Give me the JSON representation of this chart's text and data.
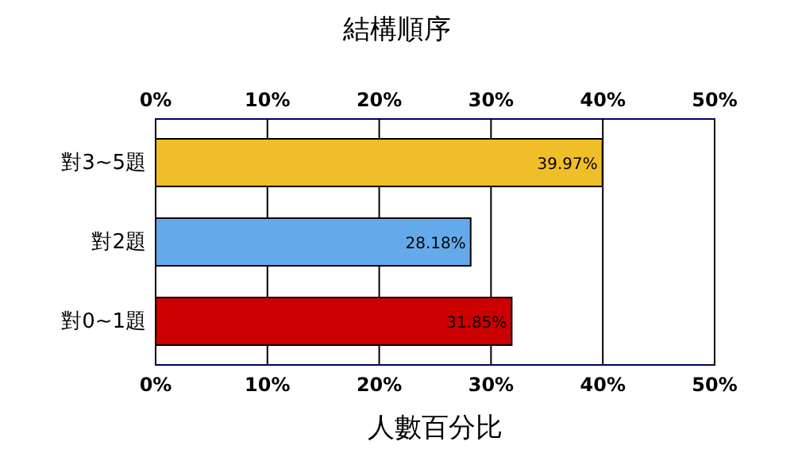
{
  "chart_data": {
    "type": "bar",
    "orientation": "horizontal",
    "title": "結構順序",
    "xlabel": "人數百分比",
    "categories": [
      "對3~5題",
      "對2題",
      "對0~1題"
    ],
    "values": [
      39.97,
      28.18,
      31.85
    ],
    "colors": [
      "#f0be28",
      "#64aaeb",
      "#cc0000"
    ],
    "value_labels": [
      "39.97%",
      "28.18%",
      "31.85%"
    ],
    "xlim": [
      0,
      50
    ],
    "xticks": [
      {
        "value": 0,
        "label": "0%"
      },
      {
        "value": 10,
        "label": "10%"
      },
      {
        "value": 20,
        "label": "20%"
      },
      {
        "value": 30,
        "label": "30%"
      },
      {
        "value": 40,
        "label": "40%"
      },
      {
        "value": 50,
        "label": "50%"
      }
    ],
    "x2lim": [
      0,
      50
    ],
    "x2ticks": [
      {
        "value": 0,
        "label": "0%"
      },
      {
        "value": 10,
        "label": "10%"
      },
      {
        "value": 20,
        "label": "20%"
      },
      {
        "value": 30,
        "label": "30%"
      },
      {
        "value": 40,
        "label": "40%"
      },
      {
        "value": 50,
        "label": "50%"
      }
    ],
    "grid": "x"
  }
}
